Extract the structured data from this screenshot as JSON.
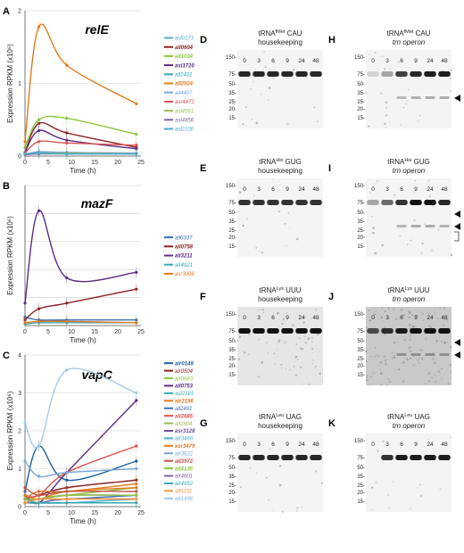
{
  "panels": [
    {
      "letter": "A",
      "gene": "relE",
      "xlabel": "Time (h)",
      "ylabel": "Expression RPKM (x10⁶)",
      "yticks": [
        "0",
        "1",
        "2"
      ],
      "xticks": [
        "0",
        "5",
        "10",
        "15",
        "20",
        "25"
      ],
      "chart_data": {
        "type": "line",
        "x": [
          0,
          3,
          9,
          24
        ],
        "ylim": [
          0,
          2
        ],
        "xlim": [
          0,
          25
        ],
        "series": [
          {
            "name": "asl0171",
            "color": "#5fa8d3",
            "bold": false,
            "values": [
              0.03,
              0.05,
              0.05,
              0.04
            ]
          },
          {
            "name": "all0604",
            "color": "#8b2323",
            "bold": true,
            "values": [
              0.05,
              0.45,
              0.32,
              0.12
            ]
          },
          {
            "name": "all1034",
            "color": "#8cc63f",
            "bold": true,
            "values": [
              0.12,
              0.5,
              0.52,
              0.3
            ]
          },
          {
            "name": "asl1720",
            "color": "#5b2c83",
            "bold": true,
            "values": [
              0.05,
              0.35,
              0.22,
              0.1
            ]
          },
          {
            "name": "all2402",
            "color": "#39a9b5",
            "bold": false,
            "values": [
              0.03,
              0.05,
              0.04,
              0.03
            ]
          },
          {
            "name": "all2924",
            "color": "#e07b1f",
            "bold": true,
            "values": [
              0.2,
              1.78,
              1.25,
              0.72
            ]
          },
          {
            "name": "all4407",
            "color": "#7aa7d8",
            "bold": false,
            "values": [
              0.02,
              0.06,
              0.05,
              0.04
            ]
          },
          {
            "name": "asr4471",
            "color": "#d9534f",
            "bold": false,
            "values": [
              0.04,
              0.2,
              0.18,
              0.15
            ]
          },
          {
            "name": "asl4561",
            "color": "#9bbb59",
            "bold": false,
            "values": [
              0.02,
              0.04,
              0.04,
              0.03
            ]
          },
          {
            "name": "asl4856",
            "color": "#8064a2",
            "bold": false,
            "values": [
              0.02,
              0.03,
              0.03,
              0.03
            ]
          },
          {
            "name": "asl2100",
            "color": "#4bacc6",
            "bold": false,
            "values": [
              0.03,
              0.04,
              0.03,
              0.03
            ]
          }
        ]
      }
    },
    {
      "letter": "B",
      "gene": "mazF",
      "xlabel": "Time (h)",
      "ylabel": "Expression RPKM (x10⁶)",
      "yticks": [],
      "xticks": [
        "0",
        "5",
        "10",
        "15",
        "20",
        "25"
      ],
      "chart_data": {
        "type": "line",
        "x": [
          0,
          3,
          9,
          24
        ],
        "ylim": [
          0,
          5
        ],
        "xlim": [
          0,
          25
        ],
        "series": [
          {
            "name": "all0337",
            "color": "#3a6fb0",
            "bold": false,
            "values": [
              0.3,
              0.2,
              0.2,
              0.2
            ]
          },
          {
            "name": "all0758",
            "color": "#8b2323",
            "bold": true,
            "values": [
              0.2,
              0.6,
              0.8,
              1.3
            ]
          },
          {
            "name": "all3211",
            "color": "#5b2c83",
            "bold": true,
            "values": [
              0.8,
              4.1,
              1.7,
              1.9
            ]
          },
          {
            "name": "alr4921",
            "color": "#39a9b5",
            "bold": false,
            "values": [
              0.05,
              0.1,
              0.1,
              0.1
            ]
          },
          {
            "name": "asr3006",
            "color": "#e07b1f",
            "bold": false,
            "values": [
              0.1,
              0.15,
              0.15,
              0.1
            ]
          }
        ]
      }
    },
    {
      "letter": "C",
      "gene": "vapC",
      "xlabel": "Time (h)",
      "ylabel": "Expression RPKM (x10⁶)",
      "yticks": [
        "0",
        "1",
        "2",
        "3",
        "4"
      ],
      "xticks": [
        "0",
        "5",
        "10",
        "15",
        "20",
        "25"
      ],
      "chart_data": {
        "type": "line",
        "x": [
          0,
          3,
          9,
          24
        ],
        "ylim": [
          0,
          4
        ],
        "xlim": [
          0,
          25
        ],
        "series": [
          {
            "name": "alr0149",
            "color": "#1f5f9e",
            "bold": true,
            "values": [
              0.4,
              1.6,
              0.7,
              1.2
            ]
          },
          {
            "name": "alr0504",
            "color": "#8b2323",
            "bold": false,
            "values": [
              0.2,
              0.3,
              0.5,
              0.7
            ]
          },
          {
            "name": "alr0683",
            "color": "#8cc63f",
            "bold": false,
            "values": [
              0.1,
              0.2,
              0.3,
              0.5
            ]
          },
          {
            "name": "all0753",
            "color": "#5b2c83",
            "bold": true,
            "values": [
              0.3,
              0.1,
              0.9,
              2.8
            ]
          },
          {
            "name": "asl2181",
            "color": "#39a9b5",
            "bold": false,
            "values": [
              0.2,
              0.1,
              0.1,
              0.1
            ]
          },
          {
            "name": "alr2196",
            "color": "#e07b1f",
            "bold": true,
            "values": [
              0.2,
              0.4,
              0.4,
              0.6
            ]
          },
          {
            "name": "all2491",
            "color": "#3a6fb0",
            "bold": false,
            "values": [
              0.1,
              0.2,
              0.2,
              0.3
            ]
          },
          {
            "name": "all2685",
            "color": "#d9534f",
            "bold": true,
            "values": [
              0.3,
              0.3,
              0.9,
              1.6
            ]
          },
          {
            "name": "all2804",
            "color": "#9bbb59",
            "bold": false,
            "values": [
              0.1,
              0.1,
              0.2,
              0.2
            ]
          },
          {
            "name": "asr3128",
            "color": "#6b4c9a",
            "bold": true,
            "values": [
              0.2,
              0.2,
              0.3,
              0.3
            ]
          },
          {
            "name": "alr3469",
            "color": "#4bacc6",
            "bold": false,
            "values": [
              0.1,
              0.1,
              0.1,
              0.2
            ]
          },
          {
            "name": "asr3479",
            "color": "#e07b1f",
            "bold": true,
            "values": [
              0.3,
              0.2,
              0.4,
              0.5
            ]
          },
          {
            "name": "alr3622",
            "color": "#7aa7d8",
            "bold": false,
            "values": [
              1.2,
              0.8,
              0.9,
              1.0
            ]
          },
          {
            "name": "all3972",
            "color": "#c0504d",
            "bold": true,
            "values": [
              0.5,
              0.3,
              0.4,
              0.4
            ]
          },
          {
            "name": "all4135",
            "color": "#8cc63f",
            "bold": true,
            "values": [
              0.2,
              0.2,
              0.3,
              0.3
            ]
          },
          {
            "name": "alr4601",
            "color": "#8064a2",
            "bold": false,
            "values": [
              0.1,
              0.1,
              0.2,
              0.2
            ]
          },
          {
            "name": "alr4952",
            "color": "#39a9b5",
            "bold": false,
            "values": [
              0.1,
              0.1,
              0.1,
              0.1
            ]
          },
          {
            "name": "all5132",
            "color": "#f79646",
            "bold": false,
            "values": [
              0.1,
              0.2,
              0.2,
              0.2
            ]
          },
          {
            "name": "all1495",
            "color": "#a6c8e6",
            "bold": true,
            "values": [
              2.2,
              1.6,
              3.6,
              3.0
            ]
          }
        ]
      }
    }
  ],
  "blots": [
    {
      "letter": "D",
      "title_pre": "tRNA",
      "title_sup": "fMet",
      "title_post": " CAU",
      "subtitle": "housekeeping",
      "subtitle_italic": false,
      "lanes": [
        "0",
        "3",
        "6",
        "9",
        "24",
        "48"
      ],
      "ticks": [
        "150-",
        "75-",
        "50-",
        "35-",
        "25-",
        "20-",
        "15-"
      ],
      "arrows": 0,
      "bracket": false,
      "intensities": [
        0.9,
        0.9,
        0.9,
        0.9,
        0.9,
        0.9
      ],
      "noise": 0.02
    },
    {
      "letter": "E",
      "title_pre": "tRNA",
      "title_sup": "His",
      "title_post": " GUG",
      "subtitle": "housekeeping",
      "subtitle_italic": false,
      "lanes": [
        "0",
        "3",
        "6",
        "9",
        "24",
        "48"
      ],
      "ticks": [
        "150-",
        "75-",
        "50-",
        "35-",
        "25-",
        "20-",
        "15-"
      ],
      "arrows": 0,
      "bracket": false,
      "intensities": [
        0.85,
        0.85,
        0.85,
        0.85,
        0.85,
        0.85
      ],
      "noise": 0.02
    },
    {
      "letter": "F",
      "title_pre": "tRNA",
      "title_sup": "Lys",
      "title_post": " UUU",
      "subtitle": "housekeeping",
      "subtitle_italic": false,
      "lanes": [
        "0",
        "3",
        "6",
        "9",
        "24",
        "48"
      ],
      "ticks": [
        "150-",
        "75-",
        "50-",
        "35-",
        "25-",
        "20-",
        "15-"
      ],
      "arrows": 0,
      "bracket": false,
      "intensities": [
        1,
        1,
        1,
        1,
        1,
        1
      ],
      "noise": 0.08
    },
    {
      "letter": "G",
      "title_pre": "tRNA",
      "title_sup": "Leu",
      "title_post": " UAG",
      "subtitle": "housekeeping",
      "subtitle_italic": false,
      "lanes": [
        "0",
        "3",
        "6",
        "9",
        "24",
        "48"
      ],
      "ticks": [
        "150-",
        "75-",
        "50-",
        "35-",
        "25-",
        "20-",
        "15-"
      ],
      "arrows": 0,
      "bracket": false,
      "intensities": [
        0.9,
        0.9,
        0.9,
        0.9,
        0.9,
        0.9
      ],
      "noise": 0.02
    },
    {
      "letter": "H",
      "title_pre": "tRNA",
      "title_sup": "fMet",
      "title_post": " CAU",
      "subtitle": "trn operon",
      "subtitle_italic": true,
      "lanes": [
        "0",
        "3",
        "6",
        "9",
        "24",
        "48"
      ],
      "ticks": [
        "150-",
        "75-",
        "50-",
        "35-",
        "25-",
        "20-",
        "15-"
      ],
      "arrows": 1,
      "bracket": false,
      "intensities": [
        0.15,
        0.35,
        0.8,
        0.9,
        0.95,
        0.95
      ],
      "noise": 0.03
    },
    {
      "letter": "I",
      "title_pre": "tRNA",
      "title_sup": "His",
      "title_post": " GUG",
      "subtitle": "trn operon",
      "subtitle_italic": true,
      "lanes": [
        "0",
        "3",
        "6",
        "9",
        "24",
        "48"
      ],
      "ticks": [
        "150-",
        "75-",
        "50-",
        "35-",
        "25-",
        "20-",
        "15-"
      ],
      "arrows": 2,
      "bracket": true,
      "intensities": [
        0.35,
        0.6,
        0.85,
        1,
        1,
        0.9
      ],
      "noise": 0.03
    },
    {
      "letter": "J",
      "title_pre": "tRNA",
      "title_sup": "Lys",
      "title_post": " UUU",
      "subtitle": "trn operon",
      "subtitle_italic": true,
      "lanes": [
        "0",
        "3",
        "6",
        "9",
        "24",
        "48"
      ],
      "ticks": [
        "150-",
        "75-",
        "50-",
        "35-",
        "25-",
        "20-",
        "15-"
      ],
      "arrows": 2,
      "bracket": false,
      "intensities": [
        0.7,
        0.85,
        0.95,
        1,
        1,
        1
      ],
      "noise": 0.14
    },
    {
      "letter": "K",
      "title_pre": "tRNA",
      "title_sup": "Leu",
      "title_post": " UAG",
      "subtitle": "trn operon",
      "subtitle_italic": true,
      "lanes": [
        "0",
        "3",
        "6",
        "9",
        "24",
        "48"
      ],
      "ticks": [
        "150-",
        "75-",
        "50-",
        "35-",
        "25-",
        "20-",
        "15-"
      ],
      "arrows": 0,
      "bracket": false,
      "intensities": [
        0,
        0.85,
        0.95,
        0.95,
        0.95,
        0.95
      ],
      "noise": 0.02
    }
  ]
}
